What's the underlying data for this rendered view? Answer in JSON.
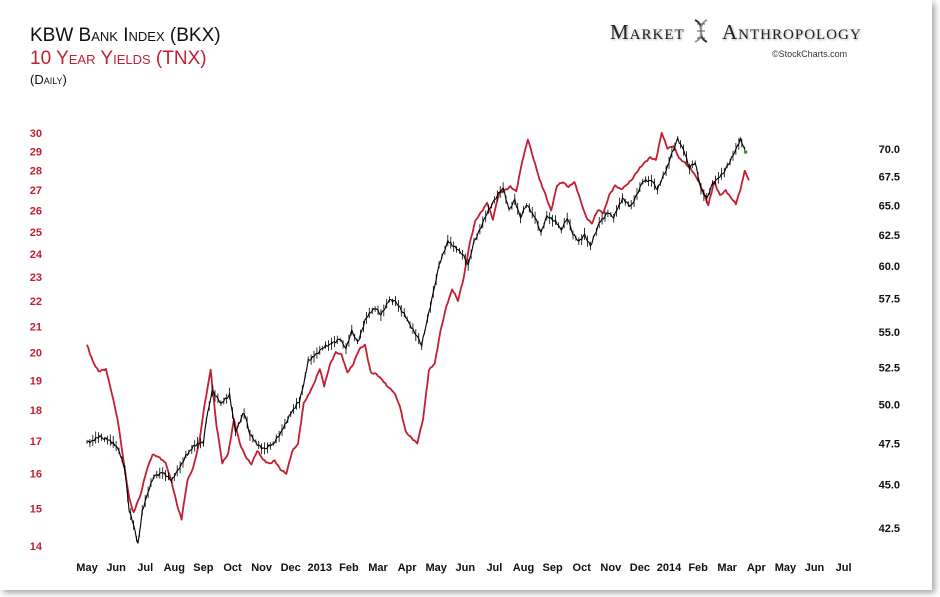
{
  "header": {
    "title": "KBW Bank Index (BKX)",
    "subtitle": "10 Year Yields (TNX)",
    "frequency": "(Daily)",
    "brand_left": "Market",
    "brand_right": "Anthropology",
    "credit": "©StockCharts.com"
  },
  "chart_data": {
    "type": "line",
    "title": "KBW Bank Index (BKX)",
    "subtitle": "10 Year Yields (TNX)",
    "frequency": "(Daily)",
    "x_ticks": [
      "May",
      "Jun",
      "Jul",
      "Aug",
      "Sep",
      "Oct",
      "Nov",
      "Dec",
      "2013",
      "Feb",
      "Mar",
      "Apr",
      "May",
      "Jun",
      "Jul",
      "Aug",
      "Sep",
      "Oct",
      "Nov",
      "Dec",
      "2014",
      "Feb",
      "Mar",
      "Apr",
      "May",
      "Jun",
      "Jul"
    ],
    "left_axis": {
      "series": "TNX",
      "scale": "log",
      "range": [
        14,
        30
      ],
      "ticks": [
        14,
        15,
        16,
        17,
        18,
        19,
        20,
        21,
        22,
        23,
        24,
        25,
        26,
        27,
        28,
        29,
        30
      ]
    },
    "right_axis": {
      "series": "BKX",
      "scale": "log",
      "range": [
        41.5,
        71.5
      ],
      "ticks": [
        "42.5",
        "45.0",
        "47.5",
        "50.0",
        "52.5",
        "55.0",
        "57.5",
        "60.0",
        "62.5",
        "65.0",
        "67.5",
        "70.0"
      ]
    },
    "grid": false,
    "series": [
      {
        "name": "BKX",
        "color": "#000000",
        "axis": "right",
        "points": [
          [
            0.0,
            47.6
          ],
          [
            0.5,
            47.9
          ],
          [
            0.9,
            47.5
          ],
          [
            1.1,
            47.0
          ],
          [
            1.3,
            46.0
          ],
          [
            1.45,
            43.5
          ],
          [
            1.6,
            42.6
          ],
          [
            1.75,
            41.6
          ],
          [
            1.9,
            43.5
          ],
          [
            2.1,
            44.5
          ],
          [
            2.3,
            45.5
          ],
          [
            2.6,
            45.8
          ],
          [
            2.9,
            45.2
          ],
          [
            3.1,
            45.7
          ],
          [
            3.4,
            46.8
          ],
          [
            3.7,
            47.4
          ],
          [
            4.0,
            47.5
          ],
          [
            4.1,
            49.0
          ],
          [
            4.3,
            51.0
          ],
          [
            4.6,
            50.0
          ],
          [
            4.9,
            50.6
          ],
          [
            5.1,
            48.3
          ],
          [
            5.4,
            49.5
          ],
          [
            5.6,
            48.0
          ],
          [
            5.9,
            47.4
          ],
          [
            6.1,
            47.2
          ],
          [
            6.4,
            47.4
          ],
          [
            6.7,
            48.3
          ],
          [
            7.0,
            49.5
          ],
          [
            7.3,
            50.2
          ],
          [
            7.45,
            51.3
          ],
          [
            7.6,
            53.0
          ],
          [
            7.9,
            53.5
          ],
          [
            8.1,
            53.8
          ],
          [
            8.4,
            54.2
          ],
          [
            8.7,
            54.6
          ],
          [
            8.9,
            53.8
          ],
          [
            9.1,
            55.0
          ],
          [
            9.3,
            54.3
          ],
          [
            9.6,
            56.1
          ],
          [
            9.9,
            56.7
          ],
          [
            10.1,
            56.3
          ],
          [
            10.4,
            57.5
          ],
          [
            10.6,
            57.2
          ],
          [
            10.9,
            56.3
          ],
          [
            11.1,
            55.6
          ],
          [
            11.3,
            54.9
          ],
          [
            11.5,
            54.0
          ],
          [
            11.7,
            56.0
          ],
          [
            11.9,
            58.0
          ],
          [
            12.1,
            60.0
          ],
          [
            12.4,
            62.0
          ],
          [
            12.7,
            61.5
          ],
          [
            12.9,
            61.0
          ],
          [
            13.1,
            60.0
          ],
          [
            13.3,
            62.0
          ],
          [
            13.5,
            63.0
          ],
          [
            13.7,
            64.0
          ],
          [
            13.9,
            65.0
          ],
          [
            14.1,
            66.0
          ],
          [
            14.3,
            66.5
          ],
          [
            14.5,
            64.5
          ],
          [
            14.7,
            65.5
          ],
          [
            14.9,
            64.0
          ],
          [
            15.1,
            65.0
          ],
          [
            15.4,
            64.0
          ],
          [
            15.6,
            62.8
          ],
          [
            15.8,
            64.0
          ],
          [
            16.1,
            63.6
          ],
          [
            16.3,
            63.0
          ],
          [
            16.5,
            64.0
          ],
          [
            16.7,
            62.5
          ],
          [
            16.9,
            62.0
          ],
          [
            17.1,
            62.6
          ],
          [
            17.3,
            61.5
          ],
          [
            17.6,
            63.5
          ],
          [
            17.9,
            64.5
          ],
          [
            18.1,
            64.0
          ],
          [
            18.4,
            65.5
          ],
          [
            18.7,
            65.0
          ],
          [
            18.9,
            66.0
          ],
          [
            19.1,
            67.0
          ],
          [
            19.4,
            67.2
          ],
          [
            19.6,
            66.5
          ],
          [
            19.9,
            68.0
          ],
          [
            20.1,
            69.5
          ],
          [
            20.3,
            71.0
          ],
          [
            20.5,
            70.0
          ],
          [
            20.7,
            68.2
          ],
          [
            20.9,
            68.8
          ],
          [
            21.1,
            66.5
          ],
          [
            21.3,
            65.5
          ],
          [
            21.5,
            66.8
          ],
          [
            21.7,
            67.5
          ],
          [
            21.9,
            68.0
          ],
          [
            22.1,
            68.8
          ],
          [
            22.3,
            70.0
          ],
          [
            22.45,
            71.0
          ],
          [
            22.6,
            70.0
          ]
        ]
      },
      {
        "name": "TNX",
        "color": "#c21f32",
        "axis": "left",
        "points": [
          [
            0.0,
            20.3
          ],
          [
            0.2,
            19.7
          ],
          [
            0.4,
            19.3
          ],
          [
            0.65,
            19.4
          ],
          [
            0.85,
            18.6
          ],
          [
            1.05,
            17.7
          ],
          [
            1.25,
            16.4
          ],
          [
            1.45,
            15.3
          ],
          [
            1.6,
            14.9
          ],
          [
            1.85,
            15.4
          ],
          [
            2.05,
            16.1
          ],
          [
            2.25,
            16.6
          ],
          [
            2.45,
            16.5
          ],
          [
            2.7,
            16.3
          ],
          [
            2.9,
            15.8
          ],
          [
            3.1,
            15.1
          ],
          [
            3.25,
            14.7
          ],
          [
            3.45,
            15.8
          ],
          [
            3.65,
            16.2
          ],
          [
            3.85,
            16.9
          ],
          [
            4.05,
            18.2
          ],
          [
            4.25,
            19.4
          ],
          [
            4.45,
            17.5
          ],
          [
            4.65,
            16.3
          ],
          [
            4.85,
            16.6
          ],
          [
            5.05,
            17.7
          ],
          [
            5.25,
            16.9
          ],
          [
            5.45,
            16.5
          ],
          [
            5.65,
            16.3
          ],
          [
            5.85,
            16.7
          ],
          [
            6.05,
            16.4
          ],
          [
            6.25,
            16.3
          ],
          [
            6.45,
            16.4
          ],
          [
            6.65,
            16.1
          ],
          [
            6.85,
            16.0
          ],
          [
            7.05,
            16.7
          ],
          [
            7.25,
            16.9
          ],
          [
            7.45,
            18.2
          ],
          [
            7.6,
            18.5
          ],
          [
            7.8,
            18.9
          ],
          [
            8.0,
            19.4
          ],
          [
            8.15,
            18.8
          ],
          [
            8.35,
            19.6
          ],
          [
            8.55,
            20.0
          ],
          [
            8.75,
            19.9
          ],
          [
            8.95,
            19.3
          ],
          [
            9.15,
            19.6
          ],
          [
            9.35,
            20.1
          ],
          [
            9.55,
            20.3
          ],
          [
            9.75,
            19.3
          ],
          [
            9.95,
            19.2
          ],
          [
            10.15,
            19.0
          ],
          [
            10.35,
            18.8
          ],
          [
            10.55,
            18.6
          ],
          [
            10.75,
            18.1
          ],
          [
            10.95,
            17.3
          ],
          [
            11.15,
            17.1
          ],
          [
            11.35,
            16.9
          ],
          [
            11.55,
            17.7
          ],
          [
            11.75,
            19.4
          ],
          [
            11.95,
            19.6
          ],
          [
            12.15,
            20.8
          ],
          [
            12.35,
            21.8
          ],
          [
            12.55,
            22.5
          ],
          [
            12.75,
            22.0
          ],
          [
            12.95,
            23.0
          ],
          [
            13.15,
            24.5
          ],
          [
            13.35,
            25.5
          ],
          [
            13.55,
            25.9
          ],
          [
            13.75,
            26.4
          ],
          [
            13.95,
            25.6
          ],
          [
            14.15,
            26.8
          ],
          [
            14.35,
            27.0
          ],
          [
            14.55,
            27.2
          ],
          [
            14.75,
            26.9
          ],
          [
            14.95,
            28.4
          ],
          [
            15.15,
            29.7
          ],
          [
            15.35,
            28.6
          ],
          [
            15.55,
            27.5
          ],
          [
            15.75,
            26.8
          ],
          [
            15.95,
            26.0
          ],
          [
            16.15,
            27.2
          ],
          [
            16.35,
            27.4
          ],
          [
            16.55,
            27.2
          ],
          [
            16.75,
            27.4
          ],
          [
            16.95,
            26.5
          ],
          [
            17.15,
            25.7
          ],
          [
            17.35,
            25.4
          ],
          [
            17.55,
            26.0
          ],
          [
            17.75,
            25.9
          ],
          [
            17.95,
            26.8
          ],
          [
            18.15,
            27.2
          ],
          [
            18.35,
            27.0
          ],
          [
            18.55,
            27.3
          ],
          [
            18.75,
            27.6
          ],
          [
            18.95,
            28.0
          ],
          [
            19.15,
            28.4
          ],
          [
            19.35,
            28.7
          ],
          [
            19.55,
            28.5
          ],
          [
            19.75,
            30.0
          ],
          [
            19.95,
            29.2
          ],
          [
            20.15,
            29.3
          ],
          [
            20.35,
            28.6
          ],
          [
            20.55,
            28.4
          ],
          [
            20.75,
            28.1
          ],
          [
            20.95,
            27.6
          ],
          [
            21.15,
            27.0
          ],
          [
            21.35,
            26.3
          ],
          [
            21.55,
            27.4
          ],
          [
            21.75,
            26.7
          ],
          [
            21.95,
            27.0
          ],
          [
            22.15,
            26.6
          ],
          [
            22.3,
            26.3
          ],
          [
            22.45,
            27.0
          ],
          [
            22.6,
            28.0
          ],
          [
            22.75,
            27.5
          ]
        ]
      }
    ]
  }
}
